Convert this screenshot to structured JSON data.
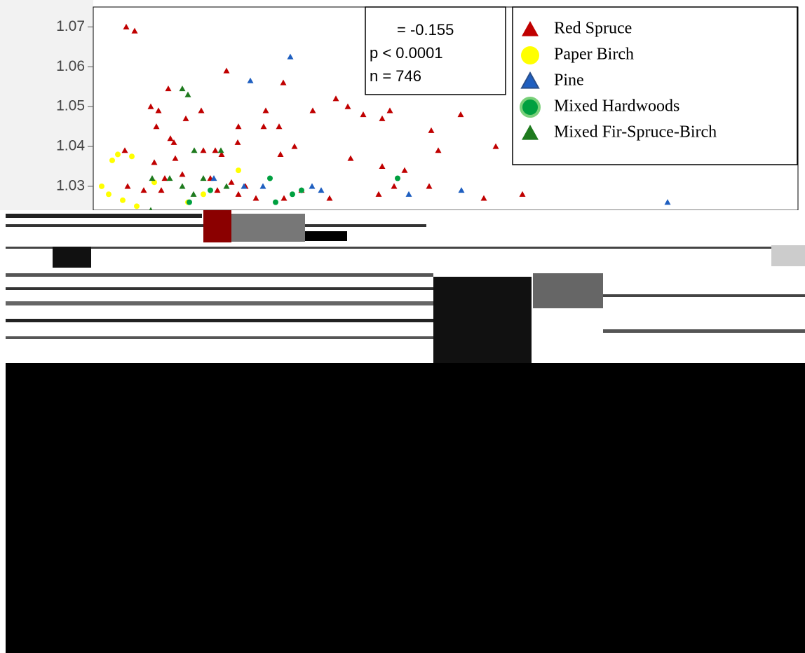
{
  "chart_data": {
    "type": "scatter",
    "xlim": [
      0,
      1005
    ],
    "ylim": [
      1.024,
      1.075
    ],
    "yticks": [
      1.07,
      1.06,
      1.05,
      1.04,
      1.03
    ],
    "stats": [
      "= -0.155",
      "p < 0.0001",
      "n = 746"
    ],
    "legend": "top-right",
    "series": [
      {
        "name": "Red Spruce",
        "color": "#c00000",
        "marker": "triangle",
        "x": [
          47,
          59,
          190,
          271,
          107,
          82,
          93,
          154,
          246,
          313,
          346,
          363,
          385,
          412,
          423,
          524,
          132,
          207,
          243,
          265,
          90,
          482,
          110,
          115,
          157,
          206,
          174,
          45,
          87,
          117,
          183,
          267,
          287,
          492,
          574,
          367,
          412,
          444,
          102,
          127,
          167,
          197,
          177,
          217,
          72,
          97,
          49,
          207,
          232,
          272,
          297,
          337,
          407,
          429,
          479,
          557,
          612
        ],
        "y": [
          1.07,
          1.069,
          1.059,
          1.056,
          1.0545,
          1.05,
          1.049,
          1.049,
          1.049,
          1.049,
          1.052,
          1.05,
          1.048,
          1.047,
          1.049,
          1.048,
          1.047,
          1.045,
          1.045,
          1.045,
          1.045,
          1.044,
          1.042,
          1.041,
          1.039,
          1.041,
          1.039,
          1.039,
          1.036,
          1.037,
          1.038,
          1.038,
          1.04,
          1.039,
          1.04,
          1.037,
          1.035,
          1.034,
          1.032,
          1.033,
          1.032,
          1.031,
          1.029,
          1.03,
          1.029,
          1.029,
          1.03,
          1.028,
          1.027,
          1.027,
          1.029,
          1.027,
          1.028,
          1.03,
          1.03,
          1.027,
          1.028
        ]
      },
      {
        "name": "Paper Birch",
        "color": "#ffff00",
        "marker": "circle",
        "x": [
          12,
          27,
          35,
          55,
          22,
          42,
          62,
          87,
          207,
          157,
          135
        ],
        "y": [
          1.03,
          1.0365,
          1.038,
          1.0375,
          1.028,
          1.0265,
          1.025,
          1.031,
          1.034,
          1.028,
          1.026
        ]
      },
      {
        "name": "Pine",
        "color": "#1f5fc0",
        "marker": "triangle",
        "x": [
          281,
          224,
          172,
          242,
          312,
          325,
          450,
          525,
          819,
          215
        ],
        "y": [
          1.0625,
          1.0565,
          1.032,
          1.03,
          1.03,
          1.029,
          1.028,
          1.029,
          1.026,
          1.03
        ]
      },
      {
        "name": "Mixed Hardwoods",
        "color": "#00a040",
        "marker": "circle",
        "x": [
          252,
          284,
          434,
          260,
          297,
          137,
          167
        ],
        "y": [
          1.032,
          1.028,
          1.032,
          1.026,
          1.029,
          1.026,
          1.029
        ]
      },
      {
        "name": "Mixed Fir-Spruce-Birch",
        "color": "#1e7a1e",
        "marker": "triangle",
        "x": [
          127,
          135,
          144,
          182,
          84,
          109,
          157,
          127,
          190,
          143,
          82
        ],
        "y": [
          1.0545,
          1.053,
          1.039,
          1.039,
          1.032,
          1.032,
          1.032,
          1.03,
          1.03,
          1.028,
          1.024
        ]
      }
    ]
  }
}
